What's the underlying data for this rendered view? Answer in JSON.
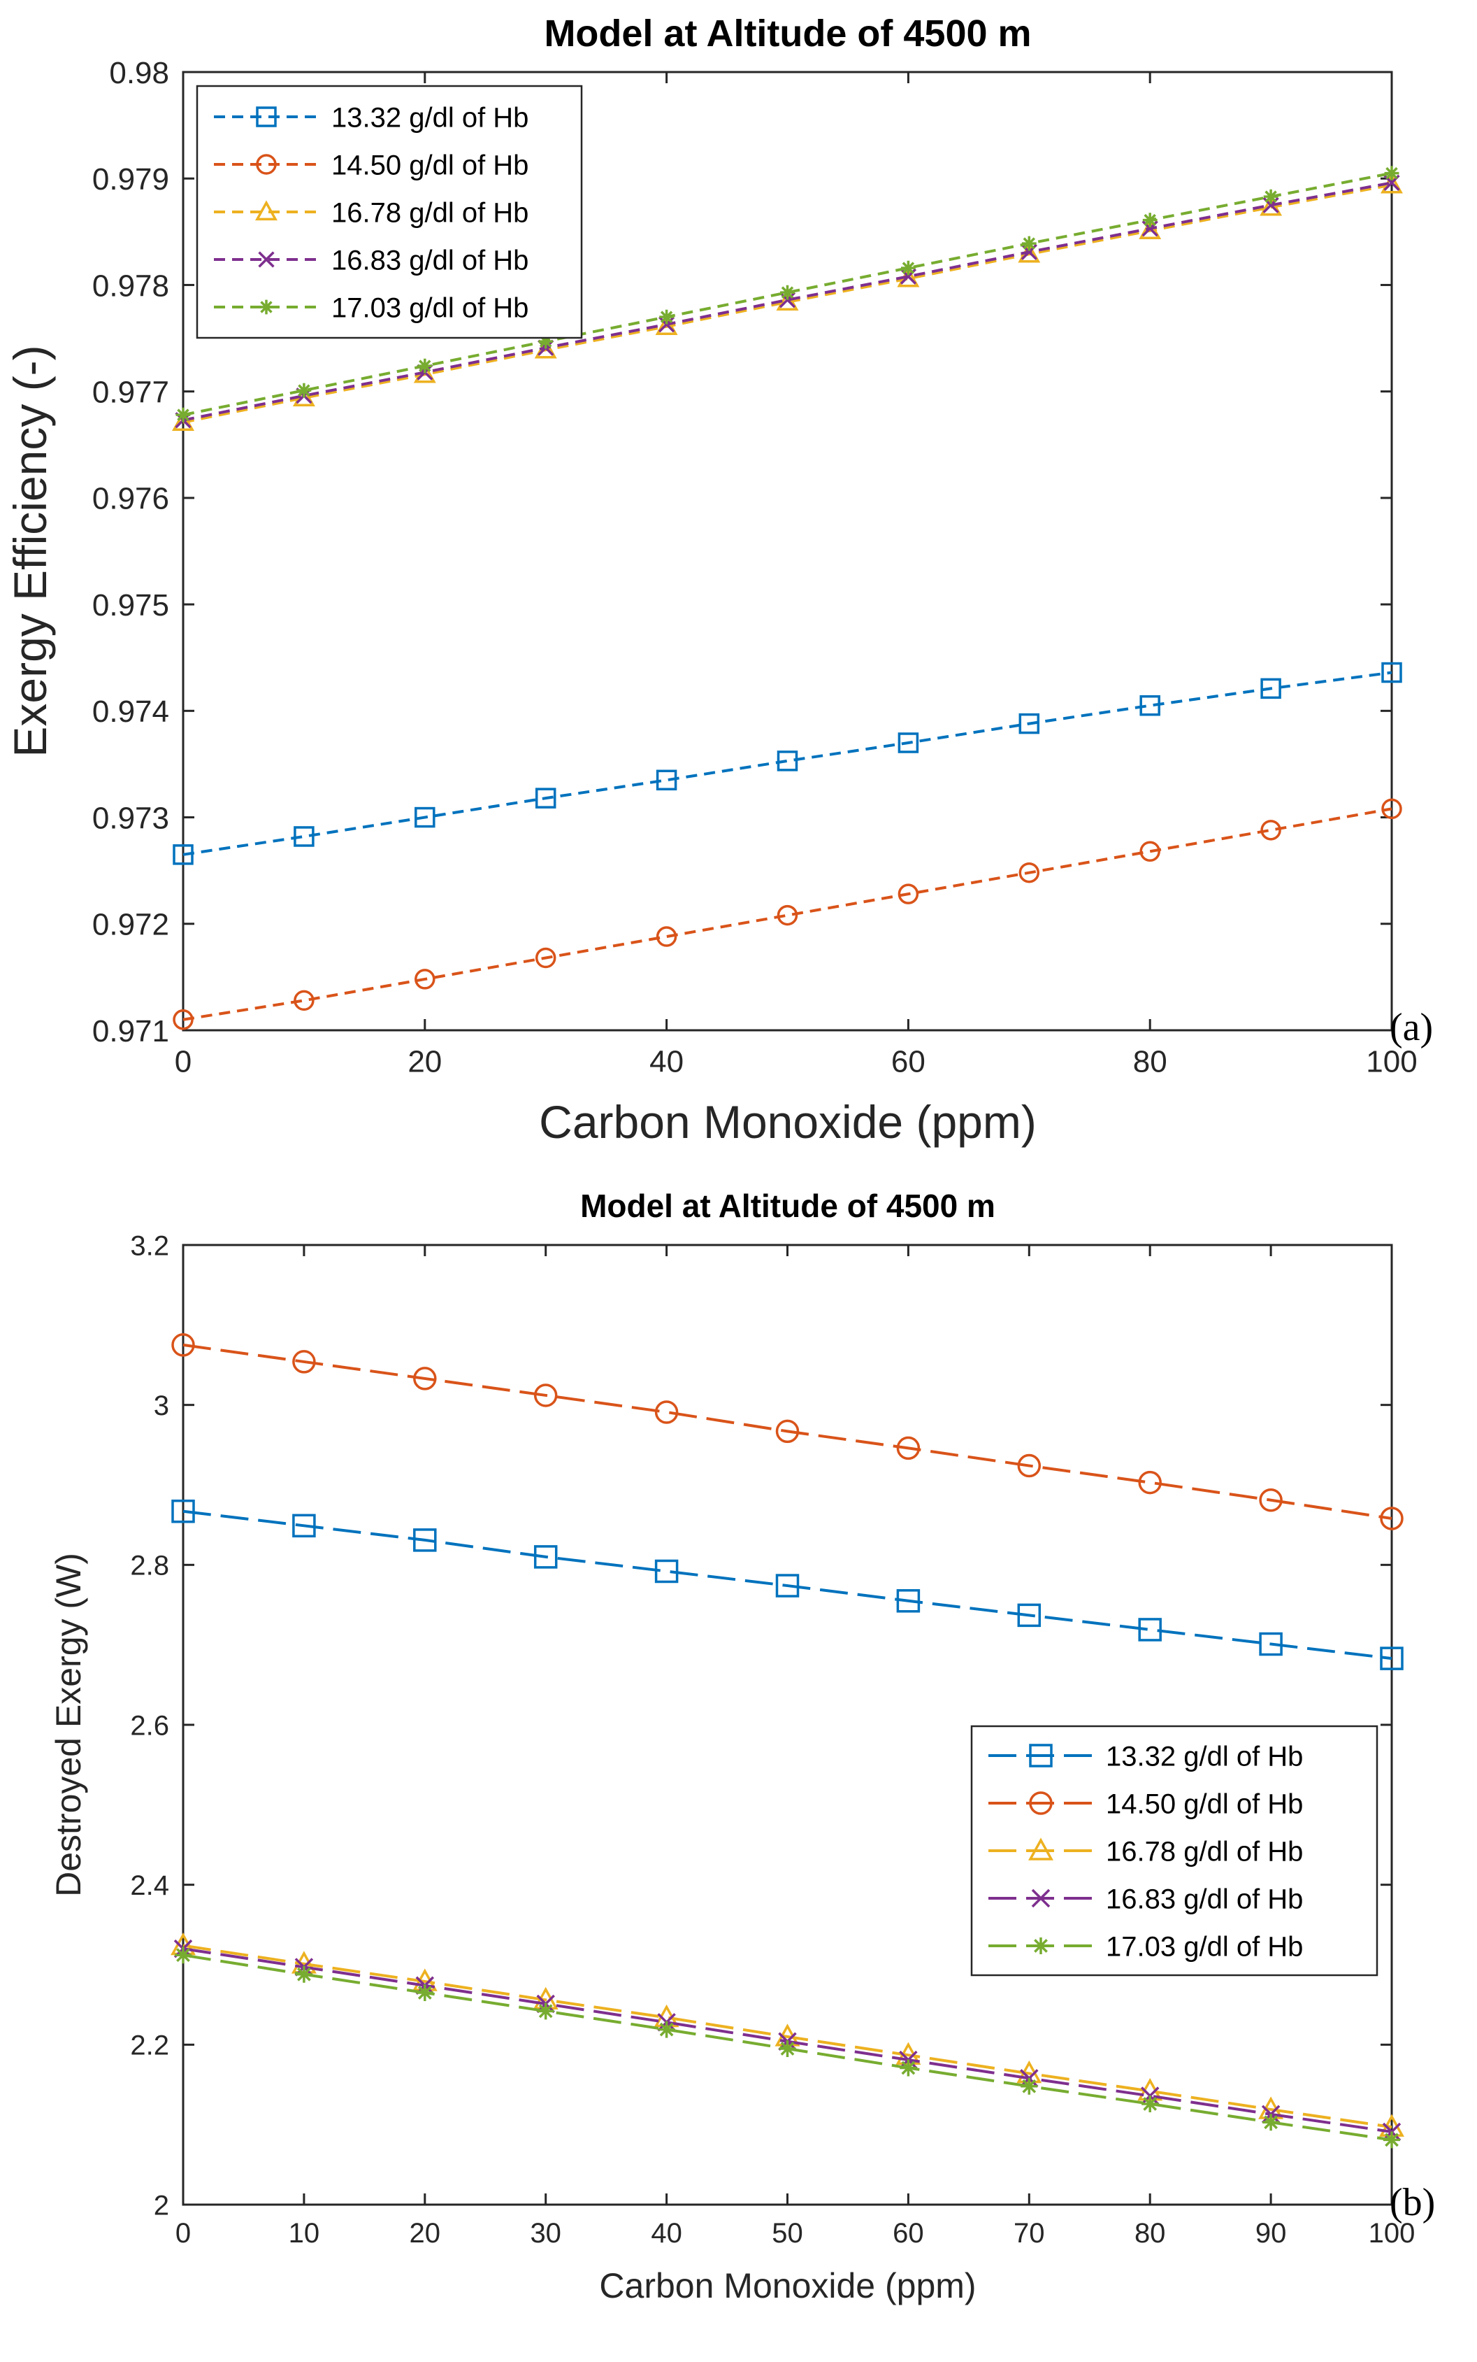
{
  "chart_data": [
    {
      "type": "line",
      "title": "Model at Altitude of 4500 m",
      "xlabel": "Carbon Monoxide (ppm)",
      "ylabel": "Exergy Efficiency (-)",
      "panel_label": "(a)",
      "xlim": [
        0,
        100
      ],
      "ylim": [
        0.971,
        0.98
      ],
      "xticks": [
        0,
        20,
        40,
        60,
        80,
        100
      ],
      "yticks": [
        0.971,
        0.972,
        0.973,
        0.974,
        0.975,
        0.976,
        0.977,
        0.978,
        0.979,
        0.98
      ],
      "ytick_labels": [
        "0.971",
        "0.972",
        "0.973",
        "0.974",
        "0.975",
        "0.976",
        "0.977",
        "0.978",
        "0.979",
        "0.98"
      ],
      "legend_position": "top-left",
      "x": [
        0,
        10,
        20,
        30,
        40,
        50,
        60,
        70,
        80,
        90,
        100
      ],
      "series": [
        {
          "name": "13.32 g/dl of Hb",
          "marker": "square",
          "color": "#0072BD",
          "values": [
            0.97265,
            0.97282,
            0.973,
            0.97318,
            0.97335,
            0.97353,
            0.9737,
            0.97388,
            0.97405,
            0.97421,
            0.97436
          ]
        },
        {
          "name": "14.50 g/dl of Hb",
          "marker": "circle",
          "color": "#D95319",
          "values": [
            0.9711,
            0.97128,
            0.97148,
            0.97168,
            0.97188,
            0.97208,
            0.97228,
            0.97248,
            0.97268,
            0.97288,
            0.97308
          ]
        },
        {
          "name": "16.78  g/dl of Hb",
          "marker": "triangle",
          "color": "#EDB120",
          "values": [
            0.97671,
            0.97694,
            0.97716,
            0.97739,
            0.97761,
            0.97784,
            0.97806,
            0.97829,
            0.97851,
            0.97873,
            0.97894
          ]
        },
        {
          "name": "16.83 g/dl of Hb",
          "marker": "x",
          "color": "#7E2F8E",
          "values": [
            0.97673,
            0.97696,
            0.97718,
            0.97741,
            0.97763,
            0.97786,
            0.97808,
            0.97831,
            0.97853,
            0.97875,
            0.97896
          ]
        },
        {
          "name": "17.03 g/dl of Hb",
          "marker": "asterisk",
          "color": "#77AC30",
          "values": [
            0.97678,
            0.97701,
            0.97724,
            0.97747,
            0.9777,
            0.97793,
            0.97816,
            0.97839,
            0.97861,
            0.97883,
            0.97905
          ]
        }
      ]
    },
    {
      "type": "line",
      "title": "Model at Altitude of 4500 m",
      "xlabel": "Carbon Monoxide (ppm)",
      "ylabel": "Destroyed Exergy (W)",
      "panel_label": "(b)",
      "xlim": [
        0,
        100
      ],
      "ylim": [
        2,
        3.2
      ],
      "xticks": [
        0,
        10,
        20,
        30,
        40,
        50,
        60,
        70,
        80,
        90,
        100
      ],
      "yticks": [
        2,
        2.2,
        2.4,
        2.6,
        2.8,
        3,
        3.2
      ],
      "ytick_labels": [
        "2",
        "2.2",
        "2.4",
        "2.6",
        "2.8",
        "3",
        "3.2"
      ],
      "legend_position": "right",
      "x": [
        0,
        10,
        20,
        30,
        40,
        50,
        60,
        70,
        80,
        90,
        100
      ],
      "series": [
        {
          "name": "13.32 g/dl of Hb",
          "marker": "square",
          "color": "#0072BD",
          "values": [
            2.867,
            2.849,
            2.831,
            2.81,
            2.792,
            2.774,
            2.755,
            2.737,
            2.719,
            2.701,
            2.683
          ]
        },
        {
          "name": "14.50 g/dl of Hb",
          "marker": "circle",
          "color": "#D95319",
          "values": [
            3.075,
            3.054,
            3.033,
            3.012,
            2.991,
            2.967,
            2.946,
            2.924,
            2.903,
            2.881,
            2.858
          ]
        },
        {
          "name": "16.78  g/dl of Hb",
          "marker": "triangle",
          "color": "#EDB120",
          "values": [
            2.324,
            2.301,
            2.279,
            2.256,
            2.234,
            2.21,
            2.187,
            2.164,
            2.142,
            2.119,
            2.097
          ]
        },
        {
          "name": "16.83 g/dl of Hb",
          "marker": "x",
          "color": "#7E2F8E",
          "values": [
            2.32,
            2.297,
            2.274,
            2.251,
            2.228,
            2.204,
            2.181,
            2.158,
            2.136,
            2.113,
            2.091
          ]
        },
        {
          "name": "17.03 g/dl of Hb",
          "marker": "asterisk",
          "color": "#77AC30",
          "values": [
            2.312,
            2.288,
            2.265,
            2.242,
            2.219,
            2.195,
            2.171,
            2.148,
            2.126,
            2.103,
            2.081
          ]
        }
      ]
    }
  ]
}
